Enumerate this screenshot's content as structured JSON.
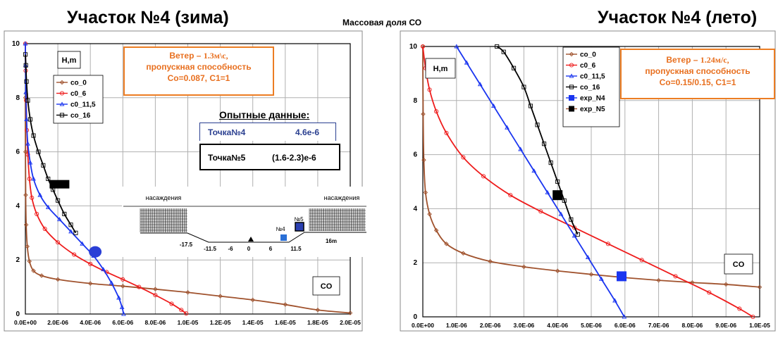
{
  "titles": {
    "left": "Участок №4 (зима)",
    "right": "Участок №4 (лето)",
    "center": "Массовая доля СО"
  },
  "wind_left": {
    "prefix": "Ветер – ",
    "speed": "1.3м\\с,",
    "line2": "пропускная способность",
    "line3": "Co=0.087, C1=1"
  },
  "wind_right": {
    "prefix": "Ветер – ",
    "speed": "1.24м/с,",
    "line2": "пропускная способность",
    "line3": "Co=0.15/0.15, C1=1"
  },
  "experiment": {
    "title": "Опытные данные:",
    "point4_label": "Точка№4",
    "point4_value": "4.6e-6",
    "point5_label": "Точка№5",
    "point5_value": "(1.6-2.3)e-6"
  },
  "schematic": {
    "left_label": "насаждения",
    "right_label": "насаждения",
    "ticks": [
      "-17.5",
      "-11.5",
      "-6",
      "0",
      "6",
      "11.5",
      "16m"
    ],
    "n4": "№4",
    "n5": "№5"
  },
  "chart_data": [
    {
      "type": "line",
      "title": "Участок №4 (зима)",
      "axis_box_label": "H,m",
      "corner_label": "CO",
      "xlim": [
        0,
        2e-05
      ],
      "ylim": [
        0,
        10
      ],
      "x_ticks": [
        "0.0E+00",
        "2.0E-06",
        "4.0E-06",
        "6.0E-06",
        "8.0E-06",
        "1.0E-05",
        "1.2E-05",
        "1.4E-05",
        "1.6E-05",
        "1.8E-05",
        "2.0E-05"
      ],
      "y_ticks": [
        "0",
        "2",
        "4",
        "6",
        "8",
        "10"
      ],
      "grid": true,
      "legend_position": "top-left",
      "series": [
        {
          "name": "co_0",
          "color": "#a0522d",
          "marker": "diamond",
          "points": [
            [
              2e-05,
              0.04
            ],
            [
              1.8e-05,
              0.15
            ],
            [
              1.6e-05,
              0.35
            ],
            [
              1.4e-05,
              0.52
            ],
            [
              1.2e-05,
              0.66
            ],
            [
              1e-05,
              0.8
            ],
            [
              8e-06,
              0.92
            ],
            [
              6e-06,
              1.03
            ],
            [
              4e-06,
              1.13
            ],
            [
              2e-06,
              1.28
            ],
            [
              1e-06,
              1.42
            ],
            [
              5e-07,
              1.6
            ],
            [
              2.5e-07,
              1.95
            ],
            [
              1.2e-07,
              2.5
            ],
            [
              5e-08,
              3.3
            ],
            [
              2e-08,
              4.4
            ],
            [
              7e-09,
              6
            ],
            [
              0,
              8
            ]
          ]
        },
        {
          "name": "c0_6",
          "color": "#ee1c1c",
          "marker": "circle",
          "points": [
            [
              9.9e-06,
              0.02
            ],
            [
              9.6e-06,
              0.15
            ],
            [
              9e-06,
              0.38
            ],
            [
              8e-06,
              0.7
            ],
            [
              7e-06,
              1.0
            ],
            [
              6e-06,
              1.28
            ],
            [
              5e-06,
              1.55
            ],
            [
              4e-06,
              1.85
            ],
            [
              3e-06,
              2.2
            ],
            [
              2e-06,
              2.65
            ],
            [
              1.2e-06,
              3.15
            ],
            [
              7e-07,
              3.7
            ],
            [
              4e-07,
              4.3
            ],
            [
              2.5e-07,
              5.0
            ],
            [
              1.5e-07,
              5.9
            ],
            [
              9e-08,
              6.8
            ],
            [
              5e-08,
              7.9
            ],
            [
              2e-08,
              9.0
            ],
            [
              0,
              10
            ]
          ]
        },
        {
          "name": "c0_11,5",
          "color": "#1a35f0",
          "marker": "triangle",
          "points": [
            [
              6.05e-06,
              0
            ],
            [
              5.95e-06,
              0.25
            ],
            [
              5.75e-06,
              0.6
            ],
            [
              5.3e-06,
              1.15
            ],
            [
              4.8e-06,
              1.65
            ],
            [
              4.2e-06,
              2.15
            ],
            [
              3.5e-06,
              2.6
            ],
            [
              2.8e-06,
              3.05
            ],
            [
              2.1e-06,
              3.5
            ],
            [
              1.4e-06,
              3.95
            ],
            [
              9e-07,
              4.4
            ],
            [
              5e-07,
              5.0
            ],
            [
              3e-07,
              5.6
            ],
            [
              1.5e-07,
              6.3
            ],
            [
              7e-08,
              7.2
            ],
            [
              3e-08,
              8.2
            ],
            [
              1e-08,
              9.2
            ],
            [
              0,
              10
            ]
          ]
        },
        {
          "name": "co_16",
          "color": "#000000",
          "marker": "square",
          "points": [
            [
              3.1e-06,
              3.0
            ],
            [
              2.8e-06,
              3.3
            ],
            [
              2.4e-06,
              3.7
            ],
            [
              2e-06,
              4.2
            ],
            [
              1.7e-06,
              4.6
            ],
            [
              1.4e-06,
              5.0
            ],
            [
              1.1e-06,
              5.5
            ],
            [
              8e-07,
              6.0
            ],
            [
              5e-07,
              6.6
            ],
            [
              3e-07,
              7.2
            ],
            [
              1.5e-07,
              7.9
            ],
            [
              7e-08,
              8.6
            ],
            [
              3e-08,
              9.2
            ],
            [
              0,
              9.6
            ]
          ]
        }
      ],
      "markers": [
        {
          "name": "Точка№5",
          "shape": "rect",
          "color": "#000000",
          "x": 2.1e-06,
          "y": 4.8
        },
        {
          "name": "Точка№4",
          "shape": "ellipse",
          "color": "#2a3fd6",
          "x": 4.3e-06,
          "y": 2.3
        }
      ]
    },
    {
      "type": "line",
      "title": "Участок №4 (лето)",
      "axis_box_label": "H,m",
      "corner_label": "CO",
      "xlim": [
        0,
        1e-05
      ],
      "ylim": [
        0,
        10
      ],
      "x_ticks": [
        "0.0E+00",
        "1.0E-06",
        "2.0E-06",
        "3.0E-06",
        "4.0E-06",
        "5.0E-06",
        "6.0E-06",
        "7.0E-06",
        "8.0E-06",
        "9.0E-06",
        "1.0E-05"
      ],
      "y_ticks": [
        "0",
        "2",
        "4",
        "6",
        "8",
        "10"
      ],
      "grid": true,
      "legend_position": "top-left",
      "series": [
        {
          "name": "co_0",
          "color": "#a0522d",
          "marker": "diamond",
          "points": [
            [
              1e-05,
              1.1
            ],
            [
              9e-06,
              1.2
            ],
            [
              8e-06,
              1.27
            ],
            [
              7e-06,
              1.35
            ],
            [
              6e-06,
              1.45
            ],
            [
              5e-06,
              1.57
            ],
            [
              4e-06,
              1.7
            ],
            [
              3e-06,
              1.85
            ],
            [
              2e-06,
              2.05
            ],
            [
              1.2e-06,
              2.35
            ],
            [
              7e-07,
              2.7
            ],
            [
              4e-07,
              3.2
            ],
            [
              2e-07,
              3.8
            ],
            [
              8e-08,
              4.6
            ],
            [
              3e-08,
              5.8
            ],
            [
              1e-08,
              7.5
            ],
            [
              0,
              10
            ]
          ]
        },
        {
          "name": "c0_6",
          "color": "#ee1c1c",
          "marker": "circle",
          "points": [
            [
              9.8e-06,
              0
            ],
            [
              9.4e-06,
              0.3
            ],
            [
              8.5e-06,
              0.9
            ],
            [
              7.5e-06,
              1.5
            ],
            [
              6.5e-06,
              2.1
            ],
            [
              5.5e-06,
              2.7
            ],
            [
              4.5e-06,
              3.3
            ],
            [
              3.5e-06,
              3.9
            ],
            [
              2.6e-06,
              4.5
            ],
            [
              1.8e-06,
              5.2
            ],
            [
              1.2e-06,
              5.9
            ],
            [
              7e-07,
              6.8
            ],
            [
              4e-07,
              7.6
            ],
            [
              2e-07,
              8.4
            ],
            [
              8e-08,
              9.2
            ],
            [
              0,
              10
            ]
          ]
        },
        {
          "name": "c0_11,5",
          "color": "#1a35f0",
          "marker": "triangle",
          "points": [
            [
              5.98e-06,
              0
            ],
            [
              5.7e-06,
              0.6
            ],
            [
              5.3e-06,
              1.4
            ],
            [
              4.9e-06,
              2.2
            ],
            [
              4.5e-06,
              3.0
            ],
            [
              4.1e-06,
              3.8
            ],
            [
              3.7e-06,
              4.6
            ],
            [
              3.3e-06,
              5.4
            ],
            [
              2.9e-06,
              6.2
            ],
            [
              2.5e-06,
              7.0
            ],
            [
              2.1e-06,
              7.8
            ],
            [
              1.7e-06,
              8.6
            ],
            [
              1.3e-06,
              9.4
            ],
            [
              1e-06,
              10.0
            ]
          ]
        },
        {
          "name": "co_16",
          "color": "#000000",
          "marker": "square",
          "points": [
            [
              4.6e-06,
              3.05
            ],
            [
              4.4e-06,
              3.6
            ],
            [
              4.2e-06,
              4.3
            ],
            [
              4e-06,
              5.0
            ],
            [
              3.8e-06,
              5.7
            ],
            [
              3.6e-06,
              6.4
            ],
            [
              3.4e-06,
              7.1
            ],
            [
              3.2e-06,
              7.8
            ],
            [
              3e-06,
              8.5
            ],
            [
              2.7e-06,
              9.2
            ],
            [
              2.4e-06,
              9.8
            ],
            [
              2.2e-06,
              10.0
            ]
          ]
        }
      ],
      "experimental": [
        {
          "name": "exp_N4",
          "color": "#1a35f0",
          "marker": "square",
          "x": 5.9e-06,
          "y": 1.5
        },
        {
          "name": "exp_N5",
          "color": "#000000",
          "marker": "square",
          "x": 4e-06,
          "y": 4.5
        }
      ]
    }
  ]
}
